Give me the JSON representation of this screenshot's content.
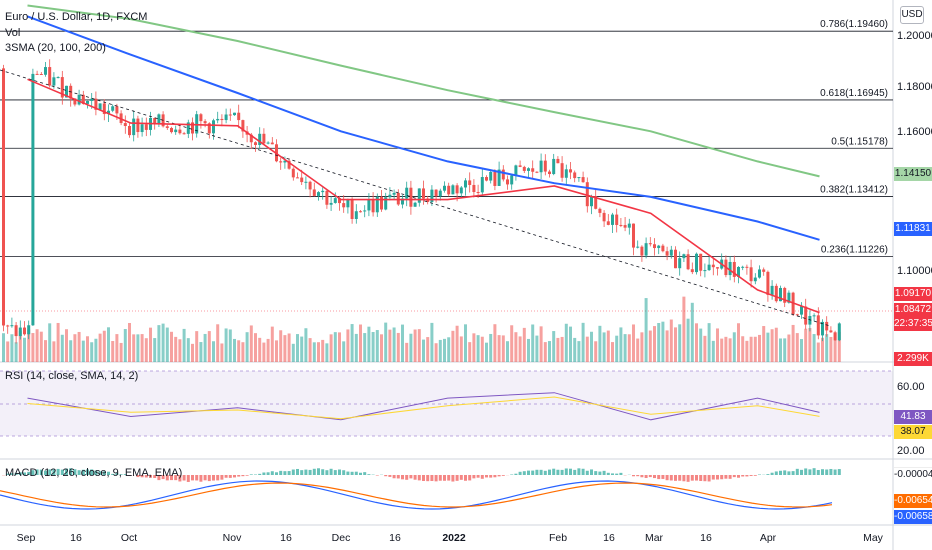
{
  "header": {
    "symbol": "Euro / U.S. Dollar, 1D, FXCM",
    "vol": "Vol",
    "sma": "3SMA (20, 100, 200)",
    "currency_button": "USD"
  },
  "main_axis": {
    "ticks": [
      "1.20000",
      "1.18000",
      "1.16000",
      "1.10000"
    ]
  },
  "x_axis": {
    "labels": [
      "Sep",
      "16",
      "Oct",
      "Nov",
      "16",
      "Dec",
      "16",
      "2022",
      "Feb",
      "16",
      "Mar",
      "16",
      "Apr",
      "May"
    ]
  },
  "fib_levels": [
    {
      "label": "0.786(1.19460)",
      "value": 1.1946
    },
    {
      "label": "0.618(1.16945)",
      "value": 1.16945
    },
    {
      "label": "0.5(1.15178)",
      "value": 1.15178
    },
    {
      "label": "0.382(1.13412)",
      "value": 1.13412
    },
    {
      "label": "0.236(1.11226)",
      "value": 1.11226
    }
  ],
  "price_tags": [
    {
      "text": "1.14150",
      "value": 1.1415,
      "bg": "#a5d6a7",
      "fg": "#131722"
    },
    {
      "text": "1.11831",
      "value": 1.11831,
      "bg": "#2962ff",
      "fg": "#ffffff"
    },
    {
      "text": "1.09170",
      "value": 1.0917,
      "bg": "#f23645",
      "fg": "#ffffff"
    },
    {
      "text": "1.08472",
      "value": 1.08472,
      "bg": "#f23645",
      "fg": "#ffffff"
    }
  ],
  "countdown": "22:37:35",
  "vol_tag": "2.299K",
  "rsi": {
    "title": "RSI (14, close, SMA, 14, 2)",
    "ticks": [
      "60.00",
      "20.00"
    ],
    "value": "41.83",
    "sma_value": "38.07"
  },
  "macd": {
    "title": "MACD (12, 26, close, 9, EMA, EMA)",
    "hist_value": "-0.00004",
    "signal_value": "-0.00654",
    "macd_value": "-0.00658"
  },
  "colors": {
    "up": "#26a69a",
    "down": "#ef5350",
    "sma20": "#f23645",
    "sma100": "#2962ff",
    "sma200": "#81c784",
    "rsi": "#7e57c2",
    "rsi_sma": "#fdd835",
    "macd": "#2962ff",
    "signal": "#ff6d00"
  },
  "chart_data": {
    "type": "line",
    "x_dates": [
      "2021-09-01",
      "2021-10-01",
      "2021-11-01",
      "2021-12-01",
      "2022-01-01",
      "2022-02-01",
      "2022-03-01",
      "2022-04-01",
      "2022-04-19"
    ],
    "close": [
      1.181,
      1.16,
      1.161,
      1.129,
      1.137,
      1.145,
      1.113,
      1.105,
      1.0847
    ],
    "series": [
      {
        "name": "20",
        "values": [
          1.177,
          1.161,
          1.16,
          1.133,
          1.133,
          1.138,
          1.128,
          1.1,
          1.0917
        ]
      },
      {
        "name": "100",
        "values": [
          1.2,
          1.186,
          1.172,
          1.158,
          1.147,
          1.139,
          1.134,
          1.125,
          1.1183
        ]
      },
      {
        "name": "200",
        "values": [
          1.204,
          1.199,
          1.191,
          1.182,
          1.173,
          1.165,
          1.158,
          1.147,
          1.1415
        ]
      }
    ],
    "ylim": [
      1.074,
      1.206
    ],
    "rsi": [
      55,
      38,
      46,
      35,
      55,
      60,
      35,
      55,
      41.83
    ],
    "rsi_sma": [
      50,
      42,
      44,
      36,
      48,
      56,
      40,
      48,
      38.07
    ]
  }
}
